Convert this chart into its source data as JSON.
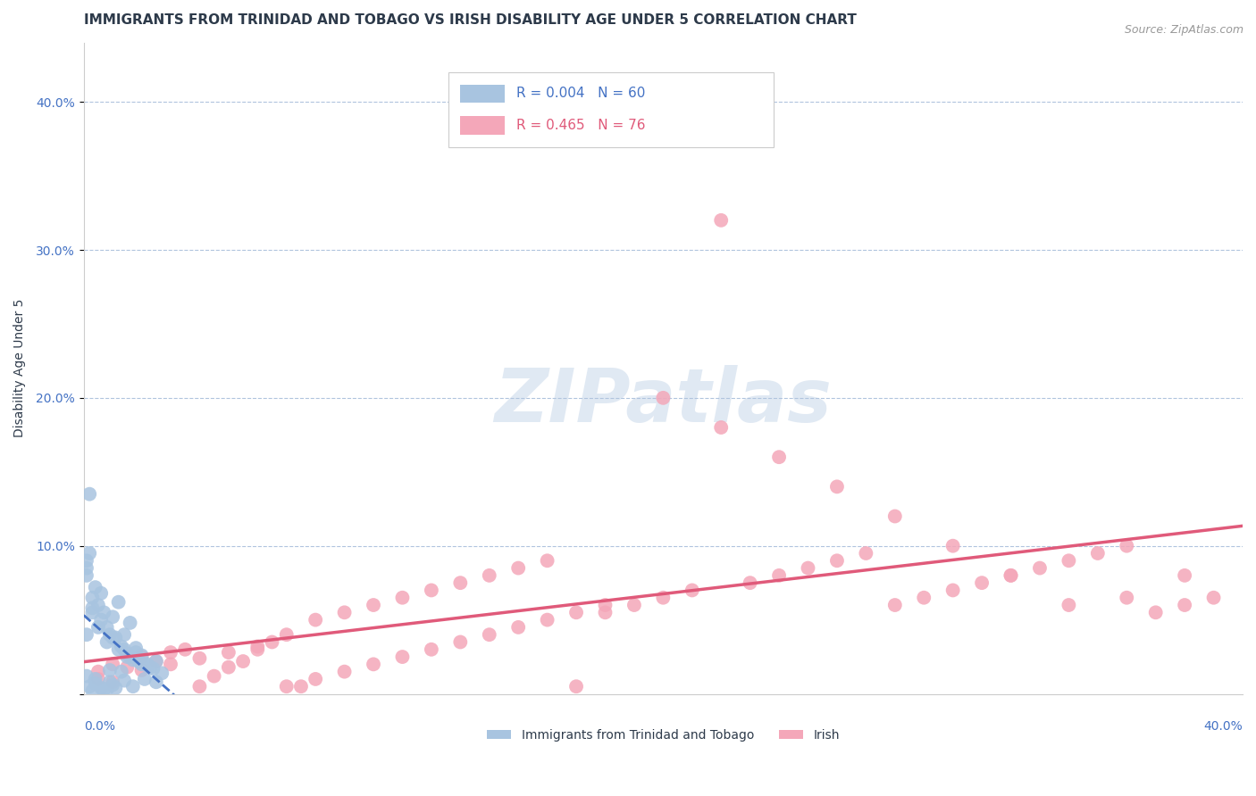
{
  "title": "IMMIGRANTS FROM TRINIDAD AND TOBAGO VS IRISH DISABILITY AGE UNDER 5 CORRELATION CHART",
  "source": "Source: ZipAtlas.com",
  "ylabel": "Disability Age Under 5",
  "xlim": [
    0.0,
    0.4
  ],
  "ylim": [
    0.0,
    0.44
  ],
  "series1_label": "Immigrants from Trinidad and Tobago",
  "series1_R": "0.004",
  "series1_N": "60",
  "series1_color": "#a8c4e0",
  "series1_trend_color": "#4472c4",
  "series2_label": "Irish",
  "series2_R": "0.465",
  "series2_N": "76",
  "series2_color": "#f4a7b9",
  "series2_trend_color": "#e05a7a",
  "watermark_text": "ZIPatlas",
  "background_color": "#ffffff",
  "title_color": "#2d3a4a",
  "tick_color": "#4472c4",
  "grid_color": "#b0c4de",
  "title_fontsize": 11,
  "axis_fontsize": 10,
  "tick_fontsize": 10,
  "blue_x": [
    0.002,
    0.001,
    0.003,
    0.005,
    0.008,
    0.012,
    0.015,
    0.018,
    0.022,
    0.025,
    0.003,
    0.006,
    0.009,
    0.013,
    0.016,
    0.019,
    0.023,
    0.001,
    0.005,
    0.008,
    0.01,
    0.014,
    0.017,
    0.02,
    0.024,
    0.027,
    0.001,
    0.004,
    0.007,
    0.011,
    0.015,
    0.019,
    0.002,
    0.006,
    0.01,
    0.014,
    0.018,
    0.022,
    0.001,
    0.004,
    0.009,
    0.013,
    0.017,
    0.021,
    0.025,
    0.002,
    0.006,
    0.01,
    0.014,
    0.004,
    0.008,
    0.003,
    0.007,
    0.011,
    0.003,
    0.012,
    0.016,
    0.02,
    0.009,
    0.001
  ],
  "blue_y": [
    0.135,
    0.04,
    0.055,
    0.045,
    0.035,
    0.03,
    0.025,
    0.028,
    0.02,
    0.022,
    0.065,
    0.05,
    0.04,
    0.032,
    0.025,
    0.022,
    0.018,
    0.08,
    0.06,
    0.045,
    0.038,
    0.03,
    0.023,
    0.02,
    0.017,
    0.014,
    0.09,
    0.072,
    0.055,
    0.038,
    0.027,
    0.022,
    0.095,
    0.068,
    0.052,
    0.04,
    0.031,
    0.019,
    0.012,
    0.01,
    0.008,
    0.015,
    0.005,
    0.01,
    0.008,
    0.005,
    0.004,
    0.006,
    0.009,
    0.007,
    0.003,
    0.002,
    0.003,
    0.004,
    0.058,
    0.062,
    0.048,
    0.026,
    0.016,
    0.085
  ],
  "pink_x": [
    0.005,
    0.01,
    0.015,
    0.02,
    0.025,
    0.03,
    0.035,
    0.04,
    0.045,
    0.05,
    0.055,
    0.06,
    0.065,
    0.07,
    0.075,
    0.08,
    0.09,
    0.1,
    0.11,
    0.12,
    0.13,
    0.14,
    0.15,
    0.16,
    0.17,
    0.18,
    0.19,
    0.2,
    0.21,
    0.22,
    0.23,
    0.24,
    0.25,
    0.26,
    0.27,
    0.28,
    0.29,
    0.3,
    0.31,
    0.32,
    0.33,
    0.34,
    0.35,
    0.36,
    0.37,
    0.38,
    0.39,
    0.01,
    0.02,
    0.03,
    0.04,
    0.05,
    0.06,
    0.07,
    0.08,
    0.09,
    0.1,
    0.11,
    0.12,
    0.13,
    0.14,
    0.15,
    0.16,
    0.17,
    0.18,
    0.2,
    0.22,
    0.24,
    0.26,
    0.28,
    0.3,
    0.32,
    0.34,
    0.36,
    0.38,
    0.005
  ],
  "pink_y": [
    0.015,
    0.02,
    0.018,
    0.025,
    0.022,
    0.028,
    0.03,
    0.005,
    0.012,
    0.018,
    0.022,
    0.03,
    0.035,
    0.04,
    0.005,
    0.05,
    0.055,
    0.06,
    0.065,
    0.07,
    0.075,
    0.08,
    0.085,
    0.09,
    0.005,
    0.055,
    0.06,
    0.065,
    0.07,
    0.32,
    0.075,
    0.08,
    0.085,
    0.09,
    0.095,
    0.06,
    0.065,
    0.07,
    0.075,
    0.08,
    0.085,
    0.09,
    0.095,
    0.1,
    0.055,
    0.06,
    0.065,
    0.008,
    0.016,
    0.02,
    0.024,
    0.028,
    0.032,
    0.005,
    0.01,
    0.015,
    0.02,
    0.025,
    0.03,
    0.035,
    0.04,
    0.045,
    0.05,
    0.055,
    0.06,
    0.2,
    0.18,
    0.16,
    0.14,
    0.12,
    0.1,
    0.08,
    0.06,
    0.065,
    0.08,
    0.01
  ]
}
